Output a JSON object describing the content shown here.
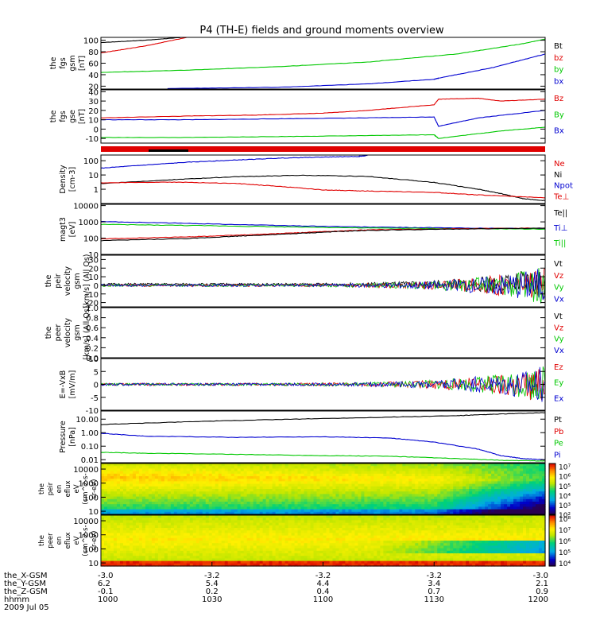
{
  "title": "P4 (TH-E) fields and ground moments overview",
  "colors": {
    "black": "#000000",
    "red": "#e00000",
    "green": "#00c800",
    "blue": "#0000d0"
  },
  "chart_data": {
    "type": "line",
    "panels": [
      {
        "id": "fgs-gsm",
        "ylabel": [
          "the",
          "fgs",
          "gsm",
          "[nT]"
        ],
        "ylim": [
          15,
          105
        ],
        "yticks": [
          "100",
          "80",
          "60",
          "40",
          "20"
        ],
        "ytick_values": [
          100,
          80,
          60,
          40,
          20
        ],
        "legend": [
          {
            "label": "Bt",
            "color": "black"
          },
          {
            "label": "bz",
            "color": "red"
          },
          {
            "label": "by",
            "color": "green"
          },
          {
            "label": "bx",
            "color": "blue"
          }
        ],
        "series": [
          {
            "name": "Bt",
            "color": "black",
            "x": [
              0,
              0.1,
              0.2
            ],
            "y": [
              96,
              100,
              106
            ]
          },
          {
            "name": "bz",
            "color": "red",
            "x": [
              0,
              0.1,
              0.2
            ],
            "y": [
              78,
              90,
              106
            ]
          },
          {
            "name": "by",
            "color": "green",
            "x": [
              0,
              0.2,
              0.4,
              0.6,
              0.8,
              0.95,
              1
            ],
            "y": [
              44,
              48,
              54,
              62,
              76,
              94,
              102
            ]
          },
          {
            "name": "bx",
            "color": "blue",
            "x": [
              0.15,
              0.4,
              0.6,
              0.75,
              0.76,
              0.88,
              1
            ],
            "y": [
              16,
              18,
              24,
              32,
              34,
              52,
              76
            ]
          }
        ]
      },
      {
        "id": "fgs-gse",
        "ylabel": [
          "the",
          "fgs",
          "gse",
          "[nT]"
        ],
        "ylim": [
          -15,
          42
        ],
        "yticks": [
          "40",
          "30",
          "20",
          "10",
          "0",
          "-10"
        ],
        "ytick_values": [
          40,
          30,
          20,
          10,
          0,
          -10
        ],
        "legend": [
          {
            "label": "Bz",
            "color": "red"
          },
          {
            "label": "By",
            "color": "green"
          },
          {
            "label": "Bx",
            "color": "blue"
          }
        ],
        "series": [
          {
            "name": "Bz",
            "color": "red",
            "x": [
              0,
              0.2,
              0.35,
              0.5,
              0.6,
              0.75,
              0.76,
              0.85,
              0.9,
              1
            ],
            "y": [
              12,
              14,
              15,
              17,
              20,
              26,
              32,
              33,
              30,
              32
            ]
          },
          {
            "name": "By",
            "color": "green",
            "x": [
              0,
              0.2,
              0.4,
              0.6,
              0.75,
              0.76,
              0.9,
              1
            ],
            "y": [
              -9,
              -9,
              -8,
              -7,
              -6,
              -10,
              -2,
              2
            ]
          },
          {
            "name": "Bx",
            "color": "blue",
            "x": [
              0,
              0.2,
              0.4,
              0.6,
              0.75,
              0.76,
              0.85,
              1
            ],
            "y": [
              10,
              10,
              11,
              12,
              13,
              3,
              12,
              20
            ]
          }
        ]
      },
      {
        "id": "density",
        "ylabel": [
          "Density",
          "[cm-3]"
        ],
        "ylim": [
          0.1,
          250
        ],
        "log": true,
        "yticks": [
          "100",
          "10",
          "1"
        ],
        "ytick_values": [
          100,
          10,
          1
        ],
        "legend": [
          {
            "label": "Ne",
            "color": "red"
          },
          {
            "label": "Ni",
            "color": "black"
          },
          {
            "label": "Npot",
            "color": "blue"
          },
          {
            "label": "Te⊥",
            "color": "red"
          }
        ],
        "series": [
          {
            "name": "Ni",
            "color": "black",
            "x": [
              0,
              0.15,
              0.3,
              0.45,
              0.6,
              0.75,
              0.85,
              0.9,
              0.95,
              1
            ],
            "y": [
              2.5,
              4.5,
              7.5,
              9.5,
              8,
              3,
              1,
              0.5,
              0.22,
              0.16
            ]
          },
          {
            "name": "Ne",
            "color": "red",
            "x": [
              0,
              0.15,
              0.3,
              0.4,
              0.5,
              0.6,
              0.75,
              0.85,
              1
            ],
            "y": [
              2.8,
              3.2,
              2.6,
              1.6,
              0.9,
              0.75,
              0.6,
              0.4,
              0.25
            ]
          },
          {
            "name": "Npot",
            "color": "blue",
            "x": [
              0,
              0.1,
              0.2,
              0.3,
              0.4,
              0.5,
              0.58,
              0.6
            ],
            "y": [
              30,
              50,
              80,
              110,
              150,
              180,
              200,
              230
            ]
          }
        ]
      },
      {
        "id": "magt3",
        "ylabel": [
          "magt3",
          "[eV]"
        ],
        "ylim": [
          10,
          12000
        ],
        "log": true,
        "yticks": [
          "10000",
          "1000",
          "100",
          "10"
        ],
        "ytick_values": [
          10000,
          1000,
          100,
          10
        ],
        "legend": [
          {
            "label": "Te||",
            "color": "black"
          },
          {
            "label": "Ti⊥",
            "color": "blue"
          },
          {
            "label": "Ti||",
            "color": "green"
          }
        ],
        "series": [
          {
            "name": "Ti⊥",
            "color": "blue",
            "x": [
              0,
              0.2,
              0.4,
              0.6,
              0.8,
              1
            ],
            "y": [
              1050,
              800,
              600,
              480,
              420,
              380
            ]
          },
          {
            "name": "Ti||",
            "color": "green",
            "x": [
              0,
              0.2,
              0.4,
              0.6,
              0.8,
              1
            ],
            "y": [
              700,
              600,
              500,
              420,
              380,
              360
            ]
          },
          {
            "name": "Te⊥",
            "color": "red",
            "x": [
              0,
              0.2,
              0.3,
              0.4,
              0.5,
              0.6,
              0.8,
              1
            ],
            "y": [
              90,
              120,
              150,
              190,
              250,
              320,
              380,
              420
            ]
          },
          {
            "name": "Te||",
            "color": "black",
            "x": [
              0,
              0.2,
              0.3,
              0.4,
              0.5,
              0.6,
              0.8,
              1
            ],
            "y": [
              70,
              95,
              130,
              170,
              230,
              300,
              360,
              410
            ]
          }
        ]
      },
      {
        "id": "peir-velocity",
        "ylabel": [
          "the",
          "peir",
          "velocity",
          "gsm",
          "[km/s] (All Qs)"
        ],
        "ylim": [
          -25,
          35
        ],
        "yticks": [
          "30",
          "20",
          "10",
          "0",
          "-10",
          "-20"
        ],
        "ytick_values": [
          30,
          20,
          10,
          0,
          -10,
          -20
        ],
        "legend": [
          {
            "label": "Vt",
            "color": "black"
          },
          {
            "label": "Vz",
            "color": "red"
          },
          {
            "label": "Vy",
            "color": "green"
          },
          {
            "label": "Vx",
            "color": "blue"
          }
        ],
        "noise": true
      },
      {
        "id": "peer-velocity",
        "ylabel": [
          "the",
          "peer",
          "velocity",
          "gsm",
          "[km/s] (All Qs)"
        ],
        "ylim": [
          0,
          1
        ],
        "yticks": [
          "1.0",
          "0.8",
          "0.6",
          "0.4",
          "0.2",
          "0.0"
        ],
        "ytick_values": [
          1,
          0.8,
          0.6,
          0.4,
          0.2,
          0
        ],
        "legend": [
          {
            "label": "Vt",
            "color": "black"
          },
          {
            "label": "Vz",
            "color": "red"
          },
          {
            "label": "Vy",
            "color": "green"
          },
          {
            "label": "Vx",
            "color": "blue"
          }
        ]
      },
      {
        "id": "efield",
        "ylabel": [
          "E=-VxB",
          "[mV/m]"
        ],
        "ylim": [
          -10,
          10
        ],
        "yticks": [
          "10",
          "5",
          "0",
          "-5",
          "-10"
        ],
        "ytick_values": [
          10,
          5,
          0,
          -5,
          -10
        ],
        "legend": [
          {
            "label": "Ez",
            "color": "red"
          },
          {
            "label": "Ey",
            "color": "green"
          },
          {
            "label": "Ex",
            "color": "blue"
          }
        ],
        "noise": true
      },
      {
        "id": "pressure",
        "ylabel": [
          "Pressure",
          "[nPa]"
        ],
        "ylim": [
          0.006,
          40
        ],
        "log": true,
        "yticks": [
          "10.00",
          "1.00",
          "0.10",
          "0.01"
        ],
        "ytick_values": [
          10,
          1,
          0.1,
          0.01
        ],
        "legend": [
          {
            "label": "Pt",
            "color": "black"
          },
          {
            "label": "Pb",
            "color": "red"
          },
          {
            "label": "Pe",
            "color": "green"
          },
          {
            "label": "Pi",
            "color": "blue"
          }
        ],
        "series": [
          {
            "name": "Pt",
            "color": "black",
            "x": [
              0,
              0.2,
              0.4,
              0.6,
              0.8,
              0.9,
              1
            ],
            "y": [
              4,
              6.5,
              9.5,
              13,
              18,
              24,
              30
            ]
          },
          {
            "name": "Pi",
            "color": "blue",
            "x": [
              0,
              0.1,
              0.3,
              0.5,
              0.65,
              0.75,
              0.85,
              0.9,
              0.95,
              1
            ],
            "y": [
              0.9,
              0.55,
              0.45,
              0.5,
              0.4,
              0.2,
              0.06,
              0.02,
              0.012,
              0.01
            ]
          },
          {
            "name": "Pe",
            "color": "green",
            "x": [
              0,
              0.1,
              0.3,
              0.5,
              0.65,
              0.8,
              0.9,
              1
            ],
            "y": [
              0.035,
              0.03,
              0.025,
              0.02,
              0.018,
              0.012,
              0.009,
              0.008
            ]
          }
        ]
      }
    ],
    "spectrograms": [
      {
        "id": "peir-en-eflux",
        "ylabel": [
          "the",
          "peir",
          "en",
          "eflux",
          "eV",
          "(cm^2-s-",
          "sr-eV)"
        ],
        "yticks": [
          "10000",
          "1000",
          "100",
          "10"
        ],
        "ytick_values": [
          10000,
          1000,
          100,
          10
        ],
        "colorbar_ticks": [
          "10⁷",
          "10⁶",
          "10⁵",
          "10⁴",
          "10³",
          "10²"
        ],
        "colorbar_values": [
          7,
          6,
          5,
          4,
          3,
          2
        ],
        "crange": [
          2,
          7.3
        ]
      },
      {
        "id": "peer-en-eflux",
        "ylabel": [
          "the",
          "peer",
          "en",
          "eflux",
          "eV",
          "(cm^2-s-",
          "sr-eV)"
        ],
        "yticks": [
          "10000",
          "1000",
          "100",
          "10"
        ],
        "ytick_values": [
          10000,
          1000,
          100,
          10
        ],
        "colorbar_ticks": [
          "10⁸",
          "10⁷",
          "10⁶",
          "10⁵",
          "10⁴"
        ],
        "colorbar_values": [
          8,
          7,
          6,
          5,
          4
        ],
        "crange": [
          3.7,
          8.3
        ]
      }
    ],
    "xaxis": {
      "row_labels": [
        "the_X-GSM",
        "the_Y-GSM",
        "the_Z-GSM",
        "hhmm",
        "2009 Jul 05"
      ],
      "ticks": [
        {
          "pos": 0,
          "vals": [
            "-3.0",
            "6.2",
            "-0.1",
            "1000"
          ]
        },
        {
          "pos": 0.25,
          "vals": [
            "-3.2",
            "5.4",
            "0.2",
            "1030"
          ]
        },
        {
          "pos": 0.5,
          "vals": [
            "-3.2",
            "4.4",
            "0.4",
            "1100"
          ]
        },
        {
          "pos": 0.75,
          "vals": [
            "-3.2",
            "3.4",
            "0.7",
            "1130"
          ]
        },
        {
          "pos": 1,
          "vals": [
            "-3.0",
            "2.1",
            "0.9",
            "1200"
          ]
        }
      ]
    }
  }
}
